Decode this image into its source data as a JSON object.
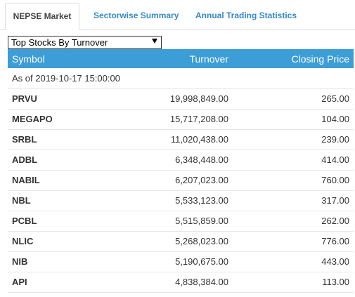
{
  "tabs": [
    {
      "label": "NEPSE Market",
      "active": true
    },
    {
      "label": "Sectorwise Summary",
      "active": false
    },
    {
      "label": "Annual Trading Statistics",
      "active": false
    }
  ],
  "filter": {
    "selected": "Top Stocks By Turnover"
  },
  "table": {
    "headers": {
      "symbol": "Symbol",
      "turnover": "Turnover",
      "closing_price": "Closing Price"
    },
    "as_of": "As of 2019-10-17 15:00:00",
    "rows": [
      {
        "symbol": "PRVU",
        "turnover": "19,998,849.00",
        "closing_price": "265.00"
      },
      {
        "symbol": "MEGAPO",
        "turnover": "15,717,208.00",
        "closing_price": "104.00"
      },
      {
        "symbol": "SRBL",
        "turnover": "11,020,438.00",
        "closing_price": "239.00"
      },
      {
        "symbol": "ADBL",
        "turnover": "6,348,448.00",
        "closing_price": "414.00"
      },
      {
        "symbol": "NABIL",
        "turnover": "6,207,023.00",
        "closing_price": "760.00"
      },
      {
        "symbol": "NBL",
        "turnover": "5,533,123.00",
        "closing_price": "317.00"
      },
      {
        "symbol": "PCBL",
        "turnover": "5,515,859.00",
        "closing_price": "262.00"
      },
      {
        "symbol": "NLIC",
        "turnover": "5,268,023.00",
        "closing_price": "776.00"
      },
      {
        "symbol": "NIB",
        "turnover": "5,190,675.00",
        "closing_price": "443.00"
      },
      {
        "symbol": "API",
        "turnover": "4,838,384.00",
        "closing_price": "113.00"
      }
    ]
  },
  "colors": {
    "header_bg": "#3d9dd6",
    "tab_link": "#3388cc"
  }
}
